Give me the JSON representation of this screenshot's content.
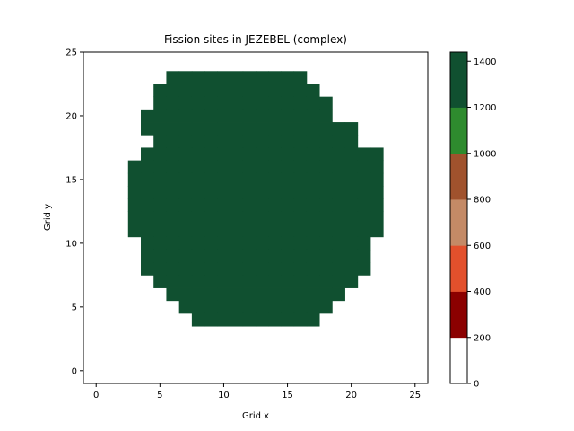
{
  "chart_data": {
    "type": "heatmap",
    "title": "Fission sites in JEZEBEL (complex)",
    "xlabel": "Grid x",
    "ylabel": "Grid y",
    "x_ticks": [
      0,
      5,
      10,
      15,
      20,
      25
    ],
    "y_ticks": [
      0,
      5,
      10,
      15,
      20,
      25
    ],
    "xlim": [
      -1,
      26
    ],
    "ylim": [
      -1,
      25
    ],
    "colorbar": {
      "boundaries": [
        0,
        200,
        400,
        600,
        800,
        1000,
        1200,
        1440
      ],
      "colors": [
        "#ffffff",
        "#8b0000",
        "#e2502c",
        "#c48a66",
        "#a0522d",
        "#2e8b2e",
        "#105030",
        "#00808b"
      ],
      "ticks": [
        0,
        200,
        400,
        600,
        800,
        1000,
        1200,
        1400
      ]
    },
    "grid": [
      "..........................",
      "......DDDDDDDDDDD.........",
      ".....DDDDDDDDDDDDD........",
      ".....DDDDDDDDDDDDDD.......",
      "....DDDDDDDDDDDDDDD.......",
      "....DDDDDDDDDDDDDDDDD.....",
      ".....DDDDDDDDDDDDDDDD.....",
      "....DDDDDDDDDDDDDDDDDDD...",
      "...DDDDDDDDDDDDDDDDDDDD...",
      "...DDDDDDDDDDDDDDDDDDDD...",
      "...DDDDDDDDDDDDDDDDDDDD...",
      "...DDDDDDDDDDDDDDDDDDDD...",
      "...DDDDDDDDDDDDDDDDDDDD...",
      "...DDDDDDDDDDDDDDDDDDDD...",
      "....DDDDDDDDDDDDDDDDDD....",
      "....DDDDDDDDDDDDDDDDDD....",
      "....DDDDDDDDDDDDDDDDDD....",
      ".....DDDDDDDDDDDDDDDD.....",
      "......DDDDDDDDDDDDDD......",
      ".......DDDDDDDDDDDD.......",
      "........DDDDDDDDDD........",
      "..........................",
      "..........................",
      "..........................",
      ".........................."
    ]
  }
}
